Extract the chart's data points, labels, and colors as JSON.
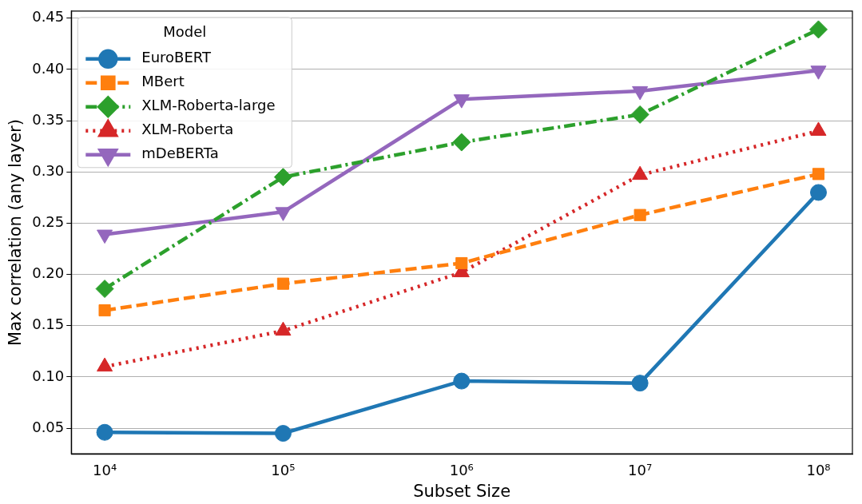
{
  "chart_data": {
    "type": "line",
    "xlabel": "Subset Size",
    "ylabel": "Max correlation (any layer)",
    "legend_title": "Model",
    "legend": "top left",
    "grid": "y",
    "log": "x",
    "x": [
      10000,
      100000,
      1000000,
      10000000,
      100000000
    ],
    "xlim": [
      6500,
      155000000
    ],
    "xticks": [
      {
        "value": 10000,
        "label": "10⁴"
      },
      {
        "value": 100000,
        "label": "10⁵"
      },
      {
        "value": 1000000,
        "label": "10⁶"
      },
      {
        "value": 10000000,
        "label": "10⁷"
      },
      {
        "value": 100000000,
        "label": "10⁸"
      }
    ],
    "ylim": [
      0.025,
      0.457
    ],
    "yticks": [
      {
        "value": 0.05,
        "label": "0.05"
      },
      {
        "value": 0.1,
        "label": "0.10"
      },
      {
        "value": 0.15,
        "label": "0.15"
      },
      {
        "value": 0.2,
        "label": "0.20"
      },
      {
        "value": 0.25,
        "label": "0.25"
      },
      {
        "value": 0.3,
        "label": "0.30"
      },
      {
        "value": 0.35,
        "label": "0.35"
      },
      {
        "value": 0.4,
        "label": "0.40"
      },
      {
        "value": 0.45,
        "label": "0.45"
      }
    ],
    "series": [
      {
        "name": "EuroBERT",
        "color": "#1f77b4",
        "marker": "circle",
        "line_style": "solid",
        "values": [
          0.046,
          0.045,
          0.096,
          0.094,
          0.28
        ]
      },
      {
        "name": "MBert",
        "color": "#ff7f0e",
        "marker": "square",
        "line_style": "dashed",
        "values": [
          0.165,
          0.191,
          0.211,
          0.258,
          0.298
        ]
      },
      {
        "name": "XLM-Roberta-large",
        "color": "#2ca02c",
        "marker": "diamond",
        "line_style": "dashdot",
        "values": [
          0.186,
          0.295,
          0.329,
          0.356,
          0.439
        ]
      },
      {
        "name": "XLM-Roberta",
        "color": "#d62728",
        "marker": "triangle",
        "line_style": "dotted",
        "values": [
          0.11,
          0.145,
          0.202,
          0.297,
          0.34
        ]
      },
      {
        "name": "mDeBERTa",
        "color": "#9467bd",
        "marker": "triangle_down",
        "line_style": "solid",
        "values": [
          0.239,
          0.261,
          0.371,
          0.379,
          0.399
        ]
      }
    ]
  }
}
